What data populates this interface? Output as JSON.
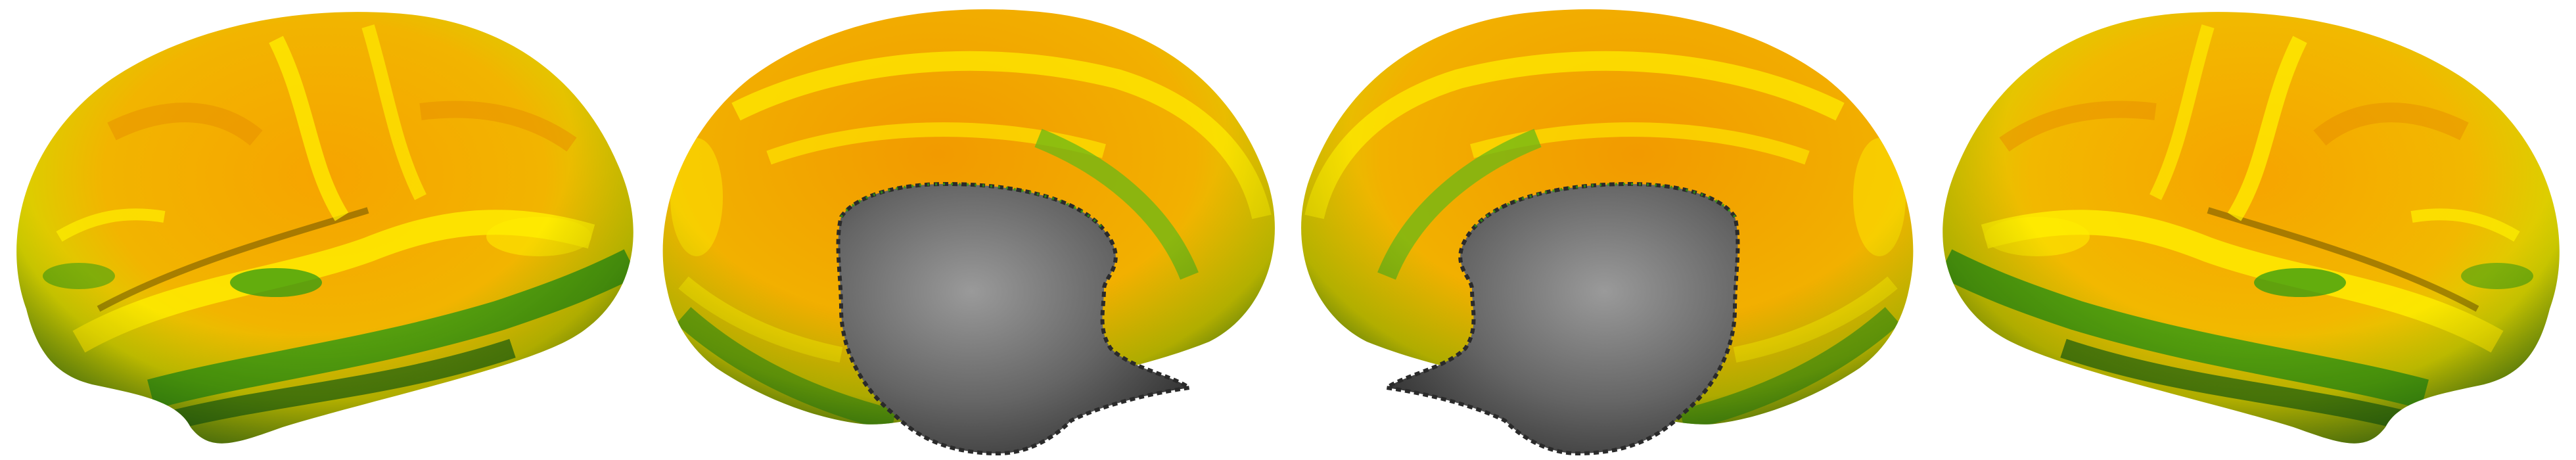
{
  "figure": {
    "background": "#ffffff",
    "panels": [
      {
        "name": "left-hemisphere-lateral-view",
        "hemisphere": "left",
        "view": "lateral"
      },
      {
        "name": "left-hemisphere-medial-view",
        "hemisphere": "left",
        "view": "medial"
      },
      {
        "name": "right-hemisphere-medial-view",
        "hemisphere": "right",
        "view": "medial"
      },
      {
        "name": "right-hemisphere-lateral-view",
        "hemisphere": "right",
        "view": "lateral"
      }
    ],
    "colors": {
      "orange": "#f29a00",
      "yellow": "#ffef00",
      "green": "#2f9b12",
      "dark_green": "#1c6b10",
      "medial_wall_gray": "#5f5f5f",
      "medial_wall_highlight": "#9a9a9a"
    }
  }
}
